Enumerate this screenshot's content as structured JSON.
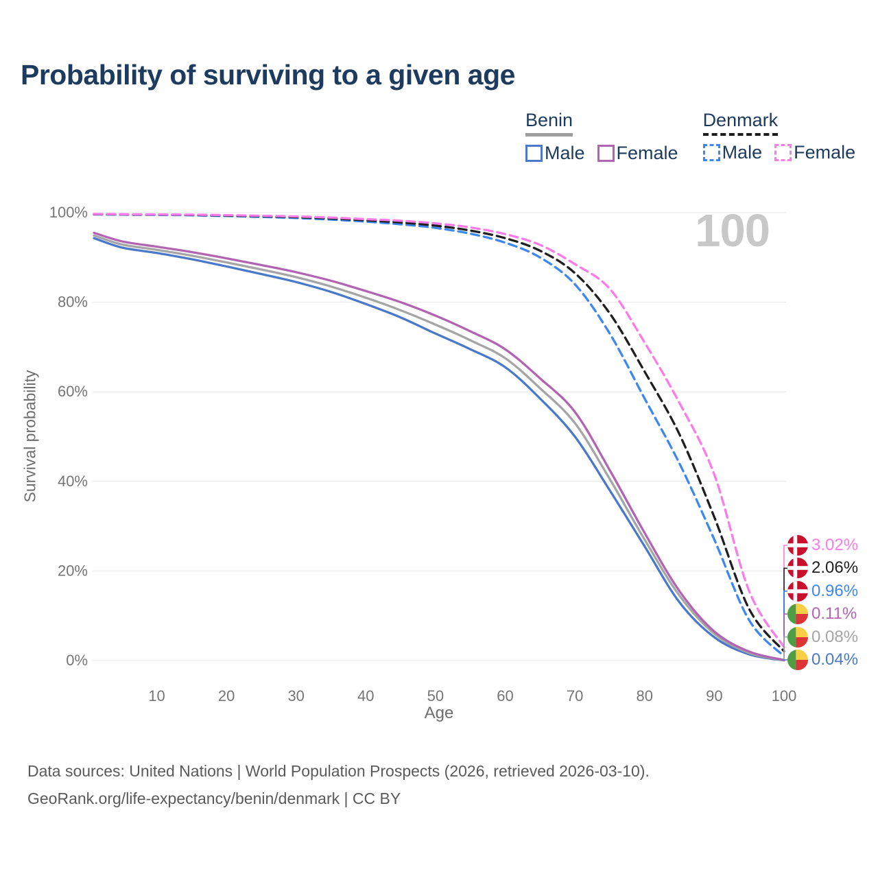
{
  "header": {
    "title": "Probability of surviving to a given age"
  },
  "legend": {
    "groups": [
      {
        "label": "Benin",
        "underline_style": "solid",
        "underline_color": "#9e9e9e",
        "underline_width": 5,
        "items": [
          {
            "label": "Male",
            "color": "#4a79c9",
            "dashed": false
          },
          {
            "label": "Female",
            "color": "#b264b2",
            "dashed": false
          }
        ]
      },
      {
        "label": "Denmark",
        "underline_style": "dashed",
        "underline_color": "#1c1c1c",
        "underline_width": 4,
        "items": [
          {
            "label": "Male",
            "color": "#3d87f0",
            "dashed": true
          },
          {
            "label": "Female",
            "color": "#fb7be8",
            "dashed": true
          }
        ]
      }
    ]
  },
  "chart_data": {
    "type": "line",
    "title": "Probability of surviving to a given age",
    "xlabel": "Age",
    "ylabel": "Survival probability",
    "xlim": [
      1,
      100
    ],
    "ylim": [
      0,
      100
    ],
    "grid": "horizontal",
    "legend_position": "top-right",
    "watermark": "100",
    "x_ticks": [
      {
        "v": 10,
        "label": "10"
      },
      {
        "v": 20,
        "label": "20"
      },
      {
        "v": 30,
        "label": "30"
      },
      {
        "v": 40,
        "label": "40"
      },
      {
        "v": 50,
        "label": "50"
      },
      {
        "v": 60,
        "label": "60"
      },
      {
        "v": 70,
        "label": "70"
      },
      {
        "v": 80,
        "label": "80"
      },
      {
        "v": 90,
        "label": "90"
      },
      {
        "v": 100,
        "label": "100"
      }
    ],
    "y_ticks": [
      {
        "v": 0,
        "label": "0%"
      },
      {
        "v": 20,
        "label": "20%"
      },
      {
        "v": 40,
        "label": "40%"
      },
      {
        "v": 60,
        "label": "60%"
      },
      {
        "v": 80,
        "label": "80%"
      },
      {
        "v": 100,
        "label": "100%"
      }
    ],
    "ages": [
      1,
      5,
      10,
      15,
      20,
      25,
      30,
      35,
      40,
      45,
      50,
      55,
      60,
      65,
      70,
      75,
      80,
      85,
      90,
      95,
      100
    ],
    "series": [
      {
        "name": "Benin Male",
        "country": "Benin",
        "sex": "Male",
        "color": "#4a79c9",
        "dashed": false,
        "flag": "benin",
        "end_label": "0.04%",
        "values": [
          94.3,
          92.2,
          91.0,
          89.6,
          88.0,
          86.3,
          84.5,
          82.3,
          79.6,
          76.6,
          73.0,
          69.5,
          65.5,
          58.5,
          50.0,
          38.0,
          25.5,
          13.0,
          5.2,
          1.4,
          0.04
        ]
      },
      {
        "name": "Benin Total",
        "country": "Benin",
        "sex": "Both",
        "color": "#a5a5a5",
        "dashed": false,
        "flag": "benin",
        "end_label": "0.08%",
        "values": [
          94.9,
          92.9,
          91.7,
          90.4,
          88.9,
          87.3,
          85.6,
          83.5,
          81.0,
          78.2,
          75.0,
          71.5,
          67.5,
          60.8,
          53.0,
          40.5,
          27.0,
          14.5,
          6.0,
          1.7,
          0.08
        ]
      },
      {
        "name": "Benin Female",
        "country": "Benin",
        "sex": "Female",
        "color": "#b264b2",
        "dashed": false,
        "flag": "benin",
        "end_label": "0.11%",
        "values": [
          95.5,
          93.6,
          92.4,
          91.2,
          89.8,
          88.3,
          86.7,
          84.8,
          82.5,
          80.0,
          77.0,
          73.5,
          69.5,
          63.0,
          55.5,
          42.5,
          28.5,
          15.5,
          6.5,
          2.0,
          0.11
        ]
      },
      {
        "name": "Denmark Male",
        "country": "Denmark",
        "sex": "Male",
        "color": "#3d87f0",
        "dashed": true,
        "flag": "denmark",
        "end_label": "0.96%",
        "values": [
          99.6,
          99.55,
          99.5,
          99.4,
          99.25,
          99.05,
          98.8,
          98.45,
          98.0,
          97.4,
          96.6,
          95.3,
          93.3,
          90.0,
          84.0,
          73.0,
          58.5,
          44.0,
          27.0,
          9.0,
          0.96
        ]
      },
      {
        "name": "Denmark Total",
        "country": "Denmark",
        "sex": "Both",
        "color": "#1f1f1f",
        "dashed": true,
        "flag": "denmark",
        "end_label": "2.06%",
        "values": [
          99.65,
          99.6,
          99.55,
          99.5,
          99.35,
          99.2,
          99.0,
          98.7,
          98.3,
          97.8,
          97.1,
          96.0,
          94.3,
          91.5,
          86.5,
          77.5,
          64.5,
          50.5,
          32.0,
          11.5,
          2.06
        ]
      },
      {
        "name": "Denmark Female",
        "country": "Denmark",
        "sex": "Female",
        "color": "#fb7be8",
        "dashed": true,
        "flag": "denmark",
        "end_label": "3.02%",
        "values": [
          99.7,
          99.65,
          99.6,
          99.55,
          99.45,
          99.3,
          99.15,
          98.9,
          98.55,
          98.2,
          97.6,
          96.7,
          95.2,
          92.8,
          88.5,
          83.0,
          71.0,
          57.5,
          41.5,
          15.5,
          3.02
        ]
      }
    ],
    "flags": {
      "benin": {
        "green": "#4f9d45",
        "yellow": "#f8ce46",
        "red": "#dc3437"
      },
      "denmark": {
        "red": "#c8102e",
        "cross": "#ffffff"
      }
    },
    "grid_color": "#e7e7e7",
    "tick_color": "#757575"
  },
  "footer": {
    "line1": "Data sources: United Nations | World Population Prospects (2026, retrieved 2026-03-10).",
    "line2": "GeoRank.org/life-expectancy/benin/denmark | CC BY"
  }
}
